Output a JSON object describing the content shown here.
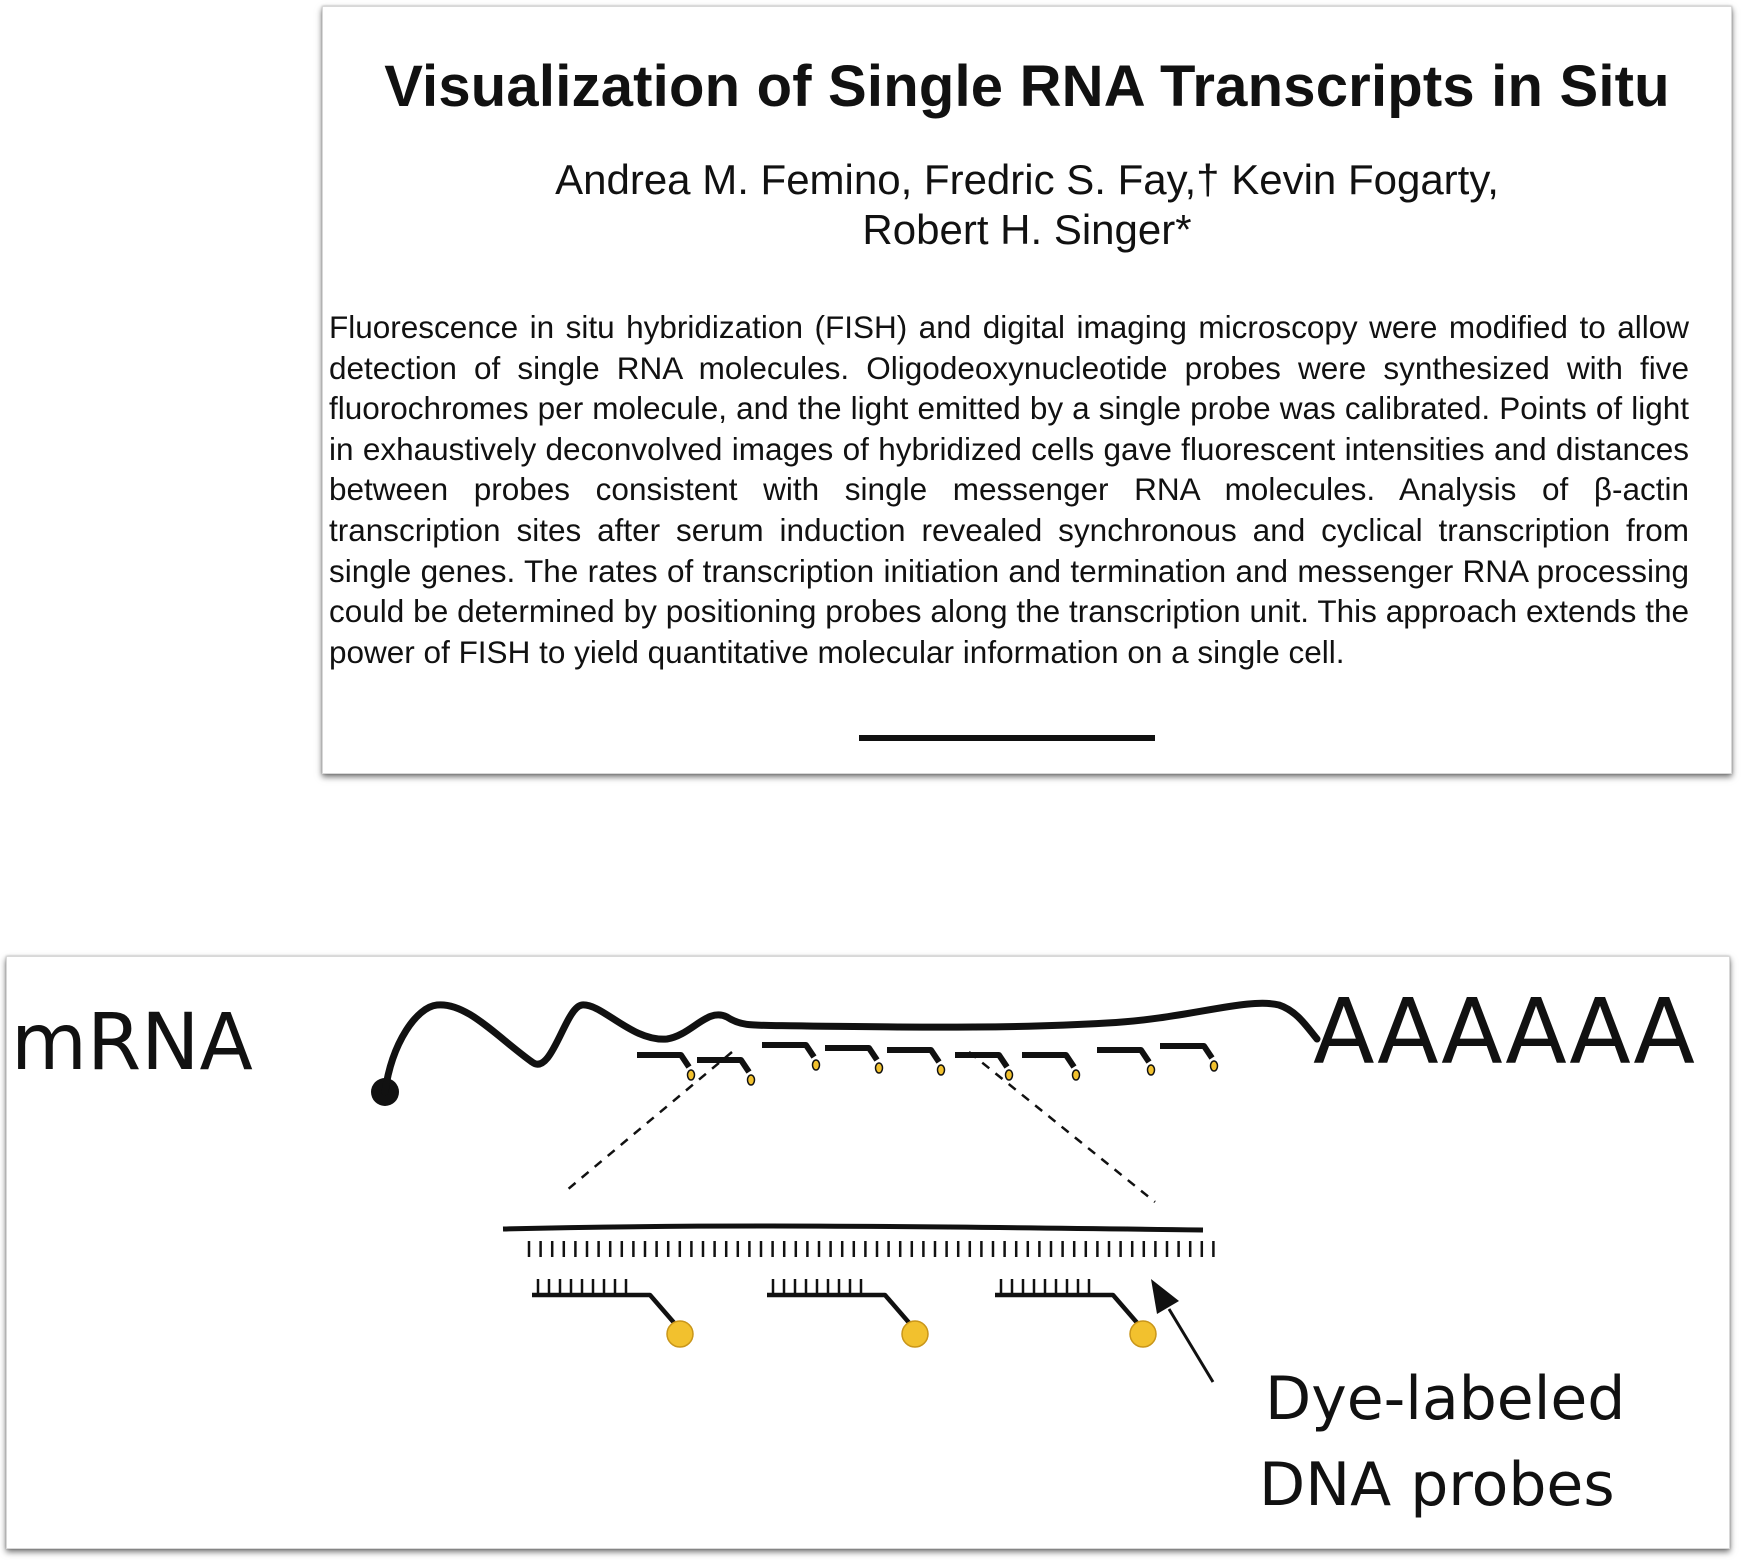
{
  "paper": {
    "title": "Visualization of Single RNA Transcripts in Situ",
    "authors_line1": "Andrea M. Femino, Fredric S. Fay,† Kevin Fogarty,",
    "authors_line2": "Robert H. Singer*",
    "abstract": "Fluorescence in situ hybridization (FISH) and digital imaging microscopy were modified to allow detection of single RNA molecules. Oligodeoxynucleotide probes were synthesized with five fluorochromes per molecule, and the light emitted by a single probe was calibrated. Points of light in exhaustively deconvolved images of hybridized cells gave fluorescent intensities and distances between probes consistent with single messenger RNA molecules. Analysis of β-actin transcription sites after serum induction revealed synchronous and cyclical transcription from single genes. The rates of transcription initiation and termination and messenger RNA processing could be determined by positioning probes along the transcription unit. This approach extends the power of FISH to yield quantitative molecular information on a single cell."
  },
  "figure": {
    "mrna_label": "mRNA",
    "polya_label": "AAAAAA",
    "probes_label_line1": "Dye-labeled",
    "probes_label_line2": "DNA probes",
    "dye_color": "#F2C12E",
    "dye_outline": "#C9961A",
    "probe_count_on_mrna": 9,
    "probe_count_zoomed": 3
  }
}
